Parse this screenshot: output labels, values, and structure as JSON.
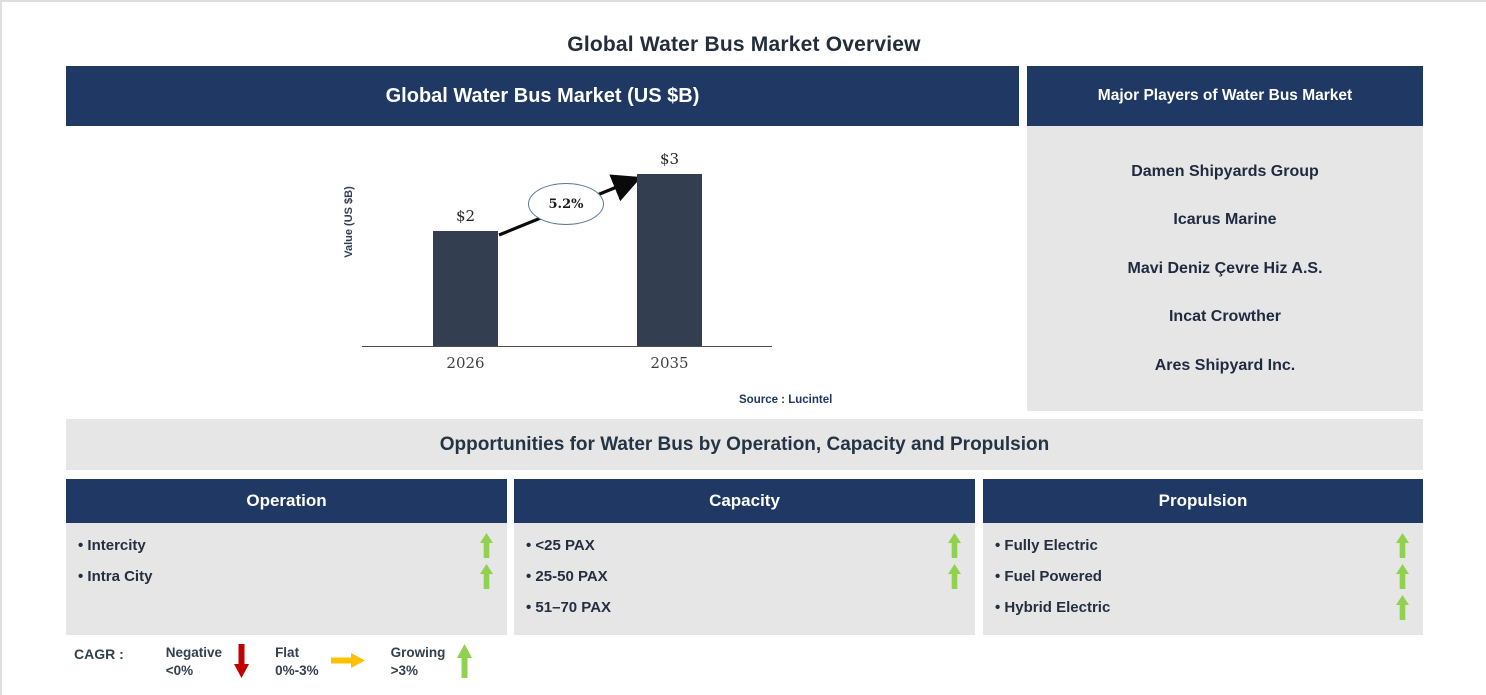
{
  "page": {
    "title": "Global Water Bus Market Overview"
  },
  "chart_panel": {
    "header": "Global Water Bus Market (US $B)",
    "source": "Source : Lucintel"
  },
  "chart_data": {
    "type": "bar",
    "title": "Global Water Bus Market (US $B)",
    "categories": [
      "2026",
      "2035"
    ],
    "values": [
      2,
      3
    ],
    "value_labels": [
      "$2",
      "$3"
    ],
    "cagr_label": "5.2%",
    "xlabel": "",
    "ylabel": "Value (US $B)",
    "ylim": [
      0,
      3.5
    ],
    "grid": false,
    "bar_color": "#333F50",
    "annotation": "CAGR 5.2% growth arrow from 2026 bar to 2035 bar"
  },
  "players_panel": {
    "header": "Major Players of Water Bus Market",
    "players": [
      "Damen Shipyards Group",
      "Icarus Marine",
      "Mavi Deniz Çevre Hiz A.S.",
      "Incat Crowther",
      "Ares Shipyard Inc."
    ]
  },
  "opportunities": {
    "title": "Opportunities for Water Bus by Operation, Capacity and Propulsion",
    "columns": [
      {
        "header": "Operation",
        "items": [
          {
            "label": "Intercity",
            "trend": "growing"
          },
          {
            "label": "Intra City",
            "trend": "growing"
          }
        ]
      },
      {
        "header": "Capacity",
        "items": [
          {
            "label": "<25 PAX",
            "trend": "growing"
          },
          {
            "label": "25-50 PAX",
            "trend": "growing"
          },
          {
            "label": "51–70 PAX",
            "trend": "none"
          }
        ]
      },
      {
        "header": "Propulsion",
        "items": [
          {
            "label": "Fully Electric",
            "trend": "growing"
          },
          {
            "label": "Fuel Powered",
            "trend": "growing"
          },
          {
            "label": "Hybrid Electric",
            "trend": "growing"
          }
        ]
      }
    ]
  },
  "legend": {
    "label": "CAGR :",
    "entries": [
      {
        "name": "Negative",
        "range": "<0%",
        "icon": "down-arrow-icon",
        "color": "#C00000"
      },
      {
        "name": "Flat",
        "range": "0%-3%",
        "icon": "right-arrow-icon",
        "color": "#FFC000"
      },
      {
        "name": "Growing",
        "range": ">3%",
        "icon": "up-arrow-icon",
        "color": "#92D050"
      }
    ]
  },
  "colors": {
    "header_navy": "#1F3864",
    "bar_slate": "#333F50",
    "panel_gray": "#E6E6E6",
    "text_dark": "#232F3F",
    "growing_green": "#92D050",
    "negative_red": "#C00000",
    "flat_orange": "#FFC000",
    "source_navy": "#1F3864"
  }
}
